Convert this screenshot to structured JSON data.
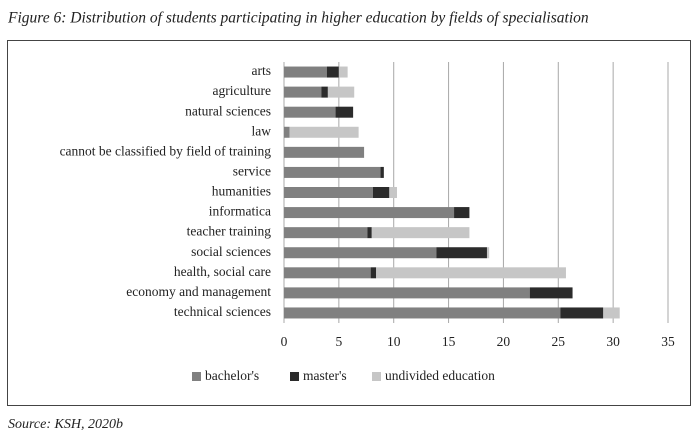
{
  "chart_data": {
    "type": "stacked-bar-horizontal",
    "title": "Figure 6: Distribution of students participating in higher education by fields of specialisation",
    "categories": [
      "arts",
      "agriculture",
      "natural sciences",
      "law",
      "cannot be classified by field of training",
      "service",
      "humanities",
      "informatica",
      "teacher training",
      "social sciences",
      "health, social care",
      "economy and management",
      "technical sciences"
    ],
    "series": [
      {
        "name": "bachelor's",
        "color": "#808080",
        "values": [
          3.9,
          3.4,
          4.7,
          0.5,
          7.3,
          8.8,
          8.1,
          15.5,
          7.6,
          13.9,
          7.9,
          22.4,
          25.2
        ]
      },
      {
        "name": "master's",
        "color": "#2b2b2b",
        "values": [
          1.1,
          0.6,
          1.6,
          0,
          0,
          0.3,
          1.5,
          1.4,
          0.4,
          4.6,
          0.5,
          3.9,
          3.9
        ]
      },
      {
        "name": "undivided education",
        "color": "#c6c6c6",
        "values": [
          0.8,
          2.4,
          0,
          6.3,
          0,
          0,
          0.7,
          0,
          8.9,
          0.2,
          17.3,
          0,
          1.5
        ]
      }
    ],
    "xlim": [
      0,
      35
    ],
    "xticks": [
      0,
      5,
      10,
      15,
      20,
      25,
      30,
      35
    ],
    "grid": true,
    "legend": "bottom",
    "source": "Source: KSH, 2020b"
  }
}
